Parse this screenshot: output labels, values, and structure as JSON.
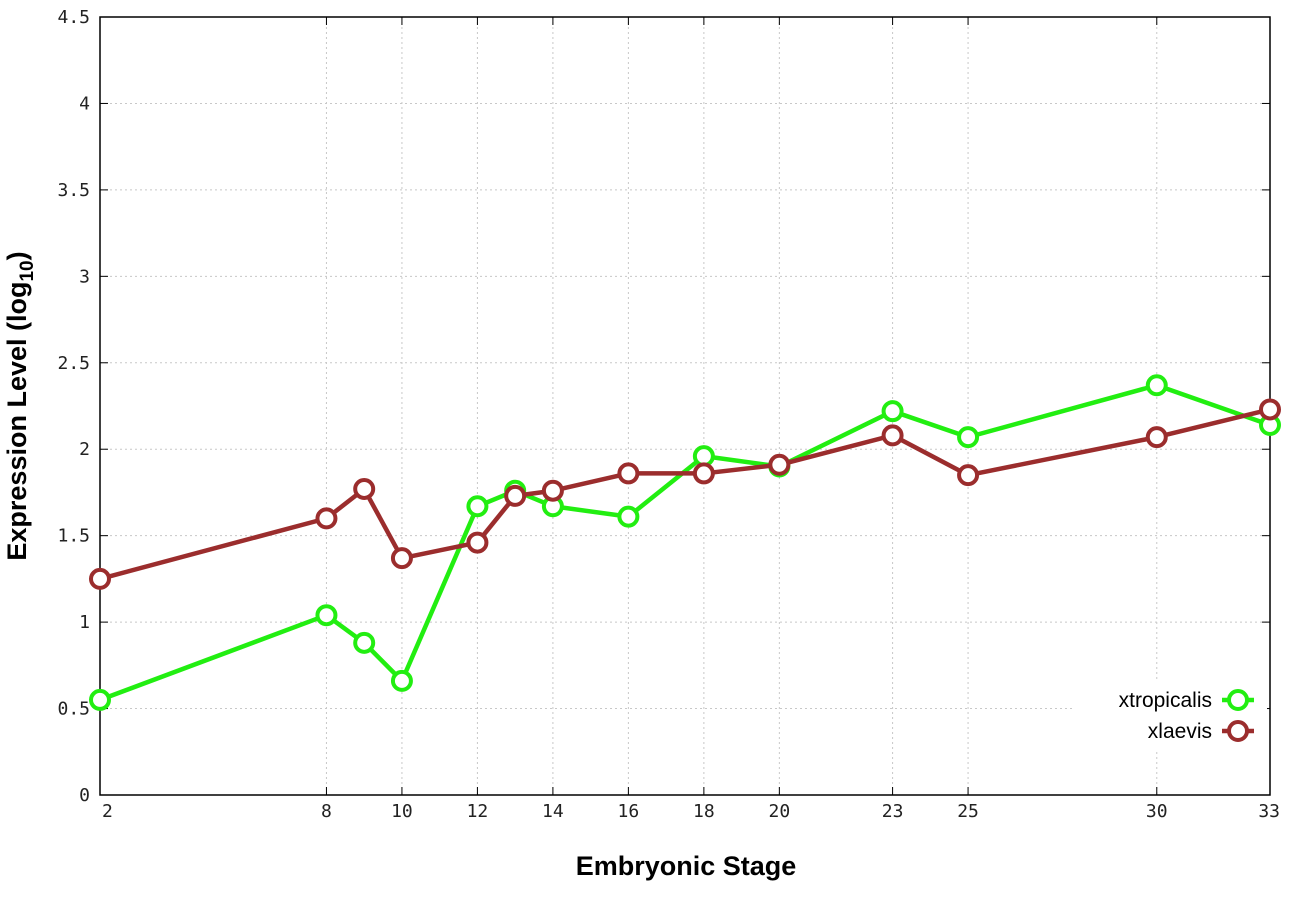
{
  "chart_data": {
    "type": "line",
    "xlabel": "Embryonic Stage",
    "ylabel_main": "Expression Level (log",
    "ylabel_sub": "10",
    "ylabel_close": ")",
    "categories": [
      "2",
      "8",
      "9",
      "10",
      "12",
      "13",
      "14",
      "16",
      "18",
      "20",
      "23",
      "25",
      "30",
      "33"
    ],
    "x": [
      2,
      8,
      9,
      10,
      12,
      13,
      14,
      16,
      18,
      20,
      23,
      25,
      30,
      33
    ],
    "x_tick_values": [
      2,
      8,
      10,
      12,
      14,
      16,
      18,
      20,
      23,
      25,
      30,
      33
    ],
    "x_tick_labels": [
      "2",
      "8",
      "10",
      "12",
      "14",
      "16",
      "18",
      "20",
      "23",
      "25",
      "30",
      "33"
    ],
    "xlim": [
      2,
      33
    ],
    "ylim": [
      0,
      4.5
    ],
    "y_tick_values": [
      0,
      0.5,
      1,
      1.5,
      2,
      2.5,
      3,
      3.5,
      4,
      4.5
    ],
    "y_tick_labels": [
      "0",
      "0.5",
      "1",
      "1.5",
      "2",
      "2.5",
      "3",
      "3.5",
      "4",
      "4.5"
    ],
    "grid": true,
    "legend_position": "bottom-right",
    "series": [
      {
        "name": "xtropicalis",
        "color": "#22ee11",
        "values": [
          0.55,
          1.04,
          0.88,
          0.66,
          1.67,
          1.76,
          1.67,
          1.61,
          1.96,
          1.9,
          2.22,
          2.07,
          2.37,
          2.14
        ]
      },
      {
        "name": "xlaevis",
        "color": "#9b2d2d",
        "values": [
          1.25,
          1.6,
          1.77,
          1.37,
          1.46,
          1.73,
          1.76,
          1.86,
          1.86,
          1.91,
          2.08,
          1.85,
          2.07,
          2.23
        ]
      }
    ]
  }
}
